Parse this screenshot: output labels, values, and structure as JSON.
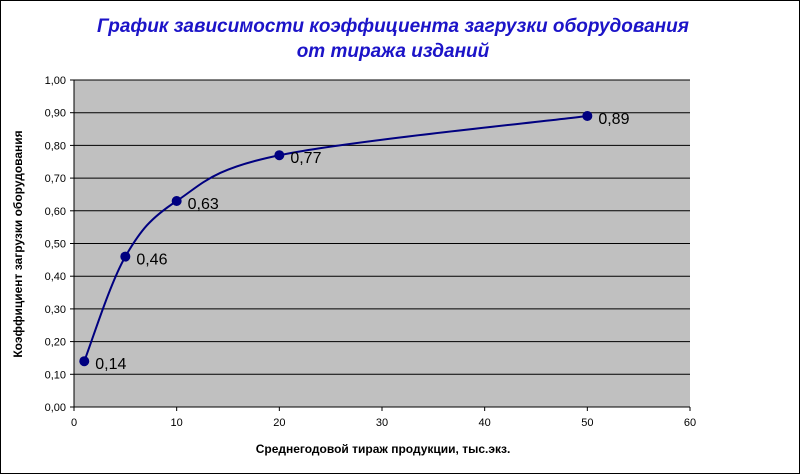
{
  "chart_data": {
    "type": "line",
    "title_lines": [
      "График зависимости коэффициента загрузки оборудования",
      "от тиража изданий"
    ],
    "xlabel": "Среднегодовой тираж продукции, тыс.экз.",
    "ylabel": "Коэффициент загрузки оборудования",
    "x": [
      1,
      5,
      10,
      20,
      50
    ],
    "y": [
      0.14,
      0.46,
      0.63,
      0.77,
      0.89
    ],
    "data_labels": [
      "0,14",
      "0,46",
      "0,63",
      "0,77",
      "0,89"
    ],
    "xlim": [
      0,
      60
    ],
    "ylim": [
      0,
      1
    ],
    "x_ticks": [
      0,
      10,
      20,
      30,
      40,
      50,
      60
    ],
    "x_tick_labels": [
      "0",
      "10",
      "20",
      "30",
      "40",
      "50",
      "60"
    ],
    "y_ticks": [
      0,
      0.1,
      0.2,
      0.3,
      0.4,
      0.5,
      0.6,
      0.7,
      0.8,
      0.9,
      1.0
    ],
    "y_tick_labels": [
      "0,00",
      "0,10",
      "0,20",
      "0,30",
      "0,40",
      "0,50",
      "0,60",
      "0,70",
      "0,80",
      "0,90",
      "1,00"
    ],
    "grid": "horizontal",
    "legend": "none",
    "smooth": true,
    "colors": {
      "title": "#1c14c8",
      "plot_background": "#c0c0c0",
      "line": "#000080",
      "marker": "#000080",
      "grid": "#000000"
    }
  }
}
